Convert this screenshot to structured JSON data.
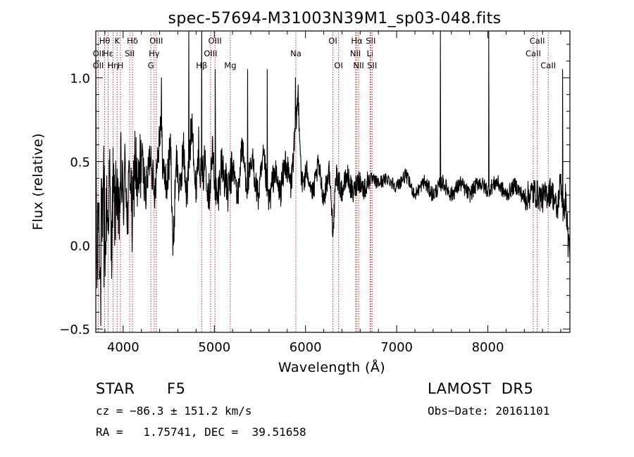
{
  "chart_data": {
    "type": "line",
    "title": "spec-57694-M31003N39M1_sp03-048.fits",
    "xlabel": "Wavelength (Å)",
    "ylabel": "Flux (relative)",
    "xlim": [
      3700,
      8900
    ],
    "ylim": [
      -0.52,
      1.28
    ],
    "x_ticks": [
      4000,
      5000,
      6000,
      7000,
      8000
    ],
    "x_tick_labels": [
      "4000",
      "5000",
      "6000",
      "7000",
      "8000"
    ],
    "y_ticks": [
      -0.5,
      0.0,
      0.5,
      1.0
    ],
    "y_tick_labels": [
      "−0.5",
      "0.0",
      "0.5",
      "1.0"
    ],
    "grid": false,
    "series": [
      {
        "color": "#000000",
        "spectrum_anchors": [
          [
            3700,
            0.9
          ],
          [
            3712,
            -0.3
          ],
          [
            3730,
            0.35
          ],
          [
            3745,
            -0.25
          ],
          [
            3760,
            0.4
          ],
          [
            3775,
            0.05
          ],
          [
            3790,
            0.45
          ],
          [
            3805,
            -0.1
          ],
          [
            3820,
            0.3
          ],
          [
            3835,
            0.1
          ],
          [
            3850,
            0.45
          ],
          [
            3870,
            -0.05
          ],
          [
            3890,
            0.4
          ],
          [
            3910,
            0.15
          ],
          [
            3930,
            0.42
          ],
          [
            3950,
            0.05
          ],
          [
            3975,
            0.45
          ],
          [
            4000,
            0.25
          ],
          [
            4025,
            0.48
          ],
          [
            4050,
            0.15
          ],
          [
            4075,
            0.5
          ],
          [
            4100,
            0.1
          ],
          [
            4130,
            0.55
          ],
          [
            4160,
            0.28
          ],
          [
            4200,
            0.55
          ],
          [
            4250,
            0.3
          ],
          [
            4300,
            0.58
          ],
          [
            4340,
            0.3
          ],
          [
            4380,
            0.55
          ],
          [
            4410,
            0.75
          ],
          [
            4440,
            0.45
          ],
          [
            4480,
            0.35
          ],
          [
            4520,
            0.6
          ],
          [
            4550,
            -0.05
          ],
          [
            4580,
            0.55
          ],
          [
            4620,
            0.3
          ],
          [
            4660,
            0.58
          ],
          [
            4700,
            0.28
          ],
          [
            4730,
            0.55
          ],
          [
            4760,
            0.78
          ],
          [
            4790,
            0.3
          ],
          [
            4830,
            0.6
          ],
          [
            4860,
            0.35
          ],
          [
            4900,
            0.52
          ],
          [
            4940,
            0.3
          ],
          [
            4980,
            0.55
          ],
          [
            5030,
            0.25
          ],
          [
            5080,
            0.5
          ],
          [
            5150,
            0.3
          ],
          [
            5200,
            0.48
          ],
          [
            5260,
            0.28
          ],
          [
            5300,
            0.6
          ],
          [
            5360,
            0.35
          ],
          [
            5420,
            0.5
          ],
          [
            5480,
            0.28
          ],
          [
            5540,
            0.52
          ],
          [
            5600,
            0.25
          ],
          [
            5660,
            0.45
          ],
          [
            5720,
            0.3
          ],
          [
            5780,
            0.5
          ],
          [
            5840,
            0.35
          ],
          [
            5880,
            0.62
          ],
          [
            5920,
            0.9
          ],
          [
            5960,
            0.35
          ],
          [
            6020,
            0.45
          ],
          [
            6080,
            0.3
          ],
          [
            6140,
            0.48
          ],
          [
            6200,
            0.28
          ],
          [
            6260,
            0.45
          ],
          [
            6300,
            0.1
          ],
          [
            6340,
            0.42
          ],
          [
            6400,
            0.32
          ],
          [
            6460,
            0.42
          ],
          [
            6520,
            0.3
          ],
          [
            6580,
            0.4
          ],
          [
            6640,
            0.33
          ],
          [
            6700,
            0.4
          ],
          [
            6800,
            0.37
          ],
          [
            6900,
            0.4
          ],
          [
            7000,
            0.35
          ],
          [
            7100,
            0.42
          ],
          [
            7200,
            0.3
          ],
          [
            7300,
            0.38
          ],
          [
            7400,
            0.3
          ],
          [
            7500,
            0.38
          ],
          [
            7600,
            0.3
          ],
          [
            7700,
            0.37
          ],
          [
            7800,
            0.3
          ],
          [
            7900,
            0.38
          ],
          [
            8000,
            0.33
          ],
          [
            8100,
            0.38
          ],
          [
            8200,
            0.3
          ],
          [
            8300,
            0.36
          ],
          [
            8400,
            0.28
          ],
          [
            8500,
            0.32
          ],
          [
            8600,
            0.28
          ],
          [
            8700,
            0.33
          ],
          [
            8760,
            0.2
          ],
          [
            8800,
            0.4
          ],
          [
            8830,
            0.15
          ],
          [
            8850,
            0.3
          ],
          [
            8880,
            0.05
          ],
          [
            8900,
            0.0
          ]
        ],
        "emission_spikes": [
          [
            4420,
            1.0
          ],
          [
            4720,
            1.28
          ],
          [
            4862,
            1.28
          ],
          [
            5010,
            1.05
          ],
          [
            5365,
            1.05
          ],
          [
            5580,
            1.05
          ],
          [
            5890,
            1.0
          ],
          [
            7480,
            1.28
          ],
          [
            8010,
            1.28
          ],
          [
            8820,
            1.05
          ]
        ],
        "absorption_dips": [
          [
            3755,
            -0.48
          ],
          [
            3790,
            -0.25
          ],
          [
            4545,
            -0.06
          ],
          [
            6310,
            0.1
          ],
          [
            8880,
            -0.07
          ]
        ]
      }
    ],
    "line_markers": [
      {
        "label": "Hθ",
        "x": 3797,
        "row": 0
      },
      {
        "label": "OII",
        "x": 3727,
        "row": 1
      },
      {
        "label": "OII",
        "x": 3727,
        "row": 2
      },
      {
        "label": "Hε",
        "x": 3835,
        "row": 1
      },
      {
        "label": "Hη",
        "x": 3889,
        "row": 2
      },
      {
        "label": "K",
        "x": 3934,
        "row": 0
      },
      {
        "label": "H",
        "x": 3970,
        "row": 2
      },
      {
        "label": "Hδ",
        "x": 4102,
        "row": 0
      },
      {
        "label": "SII",
        "x": 4072,
        "row": 1
      },
      {
        "label": "OIII",
        "x": 4363,
        "row": 0
      },
      {
        "label": "Hγ",
        "x": 4340,
        "row": 1
      },
      {
        "label": "G",
        "x": 4304,
        "row": 2
      },
      {
        "label": "Hβ",
        "x": 4861,
        "row": 2
      },
      {
        "label": "OIII",
        "x": 5007,
        "row": 0
      },
      {
        "label": "OIII",
        "x": 4959,
        "row": 1
      },
      {
        "label": "Mg",
        "x": 5175,
        "row": 2
      },
      {
        "label": "Na",
        "x": 5894,
        "row": 1
      },
      {
        "label": "OI",
        "x": 6300,
        "row": 0
      },
      {
        "label": "OI",
        "x": 6363,
        "row": 2
      },
      {
        "label": "Hα",
        "x": 6563,
        "row": 0
      },
      {
        "label": "SII",
        "x": 6716,
        "row": 0
      },
      {
        "label": "NII",
        "x": 6548,
        "row": 1
      },
      {
        "label": "Li",
        "x": 6708,
        "row": 1
      },
      {
        "label": "NII",
        "x": 6583,
        "row": 2
      },
      {
        "label": "SII",
        "x": 6731,
        "row": 2
      },
      {
        "label": "CaII",
        "x": 8542,
        "row": 0
      },
      {
        "label": "CaII",
        "x": 8498,
        "row": 1
      },
      {
        "label": "CaII",
        "x": 8662,
        "row": 2
      }
    ]
  },
  "info": {
    "obj_class": "STAR",
    "subclass": "F5",
    "release": "LAMOST  DR5",
    "cz": "cz = −86.3 ± 151.2 km/s",
    "obs_date": "Obs−Date: 20161101",
    "radec": "RA =   1.75741, DEC =  39.51658"
  }
}
